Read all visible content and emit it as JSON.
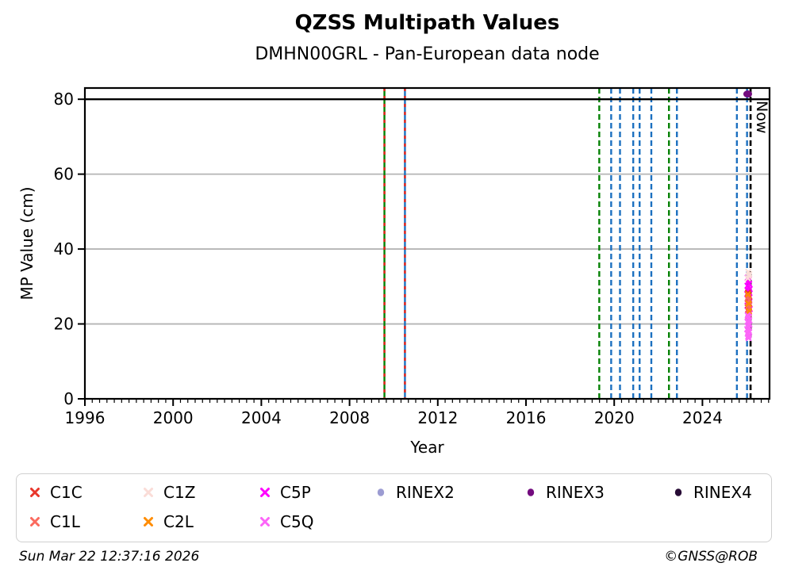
{
  "header": {
    "title": "QZSS Multipath Values",
    "subtitle": "DMHN00GRL - Pan-European data node"
  },
  "footer": {
    "timestamp": "Sun Mar 22 12:37:16 2026",
    "copyright": "©GNSS@ROB"
  },
  "palette": {
    "green": "#048104",
    "blue": "#1c70c0",
    "black": "#000000",
    "red_overlay": "#e32119",
    "grid": "#b5b5b5",
    "spine": "#000000"
  },
  "chart_data": {
    "type": "scatter",
    "title": "QZSS Multipath Values",
    "subtitle": "DMHN00GRL - Pan-European data node",
    "xlabel": "Year",
    "ylabel": "MP Value (cm)",
    "xlim": [
      1996,
      2027.04
    ],
    "ylim": [
      0,
      83
    ],
    "xticks": [
      1996,
      2000,
      2004,
      2008,
      2012,
      2016,
      2020,
      2024
    ],
    "yticks": [
      0,
      20,
      40,
      60,
      80
    ],
    "minor_tick_step_years": 0.3333,
    "grid": "horizontal-only",
    "gridlines_y": [
      20,
      40,
      60
    ],
    "hlines": [
      {
        "y": 80,
        "color": "black",
        "style": "solid"
      }
    ],
    "vlines": [
      {
        "year": 2009.58,
        "color": "green",
        "style": "solid",
        "overlay": "red-dashed"
      },
      {
        "year": 2010.51,
        "color": "blue",
        "style": "solid",
        "overlay": "red-dashed"
      },
      {
        "year": 2019.32,
        "color": "green",
        "style": "dashed"
      },
      {
        "year": 2019.86,
        "color": "blue",
        "style": "dashed"
      },
      {
        "year": 2020.26,
        "color": "blue",
        "style": "dashed"
      },
      {
        "year": 2020.86,
        "color": "blue",
        "style": "dashed"
      },
      {
        "year": 2021.15,
        "color": "blue",
        "style": "dashed"
      },
      {
        "year": 2021.68,
        "color": "blue",
        "style": "dashed"
      },
      {
        "year": 2022.48,
        "color": "green",
        "style": "dashed"
      },
      {
        "year": 2022.84,
        "color": "blue",
        "style": "dashed"
      },
      {
        "year": 2025.56,
        "color": "blue",
        "style": "dashed"
      },
      {
        "year": 2026.02,
        "color": "blue",
        "style": "dashed"
      }
    ],
    "now_line": {
      "year": 2026.18,
      "color": "black",
      "style": "dashed",
      "label": "Now"
    },
    "series": [
      {
        "name": "C5P",
        "marker": "x",
        "color": "#ff00ff",
        "points": [
          [
            2026.05,
            32.3
          ],
          [
            2026.1,
            31.8
          ],
          [
            2026.07,
            31.2
          ],
          [
            2026.12,
            30.7
          ],
          [
            2026.04,
            30.2
          ],
          [
            2026.09,
            29.8
          ],
          [
            2026.14,
            29.3
          ],
          [
            2026.06,
            28.9
          ],
          [
            2026.11,
            28.4
          ],
          [
            2026.03,
            28.0
          ],
          [
            2026.08,
            27.6
          ],
          [
            2026.13,
            27.1
          ],
          [
            2026.05,
            26.7
          ],
          [
            2026.1,
            26.2
          ],
          [
            2026.07,
            25.8
          ],
          [
            2026.12,
            25.3
          ],
          [
            2026.04,
            24.9
          ],
          [
            2026.09,
            24.5
          ],
          [
            2026.14,
            24.0
          ],
          [
            2026.06,
            23.6
          ],
          [
            2026.11,
            23.1
          ],
          [
            2026.08,
            22.7
          ]
        ]
      },
      {
        "name": "C1C",
        "marker": "x",
        "color": "#e8362b",
        "points": [
          [
            2026.06,
            28.3
          ],
          [
            2026.1,
            27.6
          ],
          [
            2026.08,
            26.9
          ],
          [
            2026.12,
            26.2
          ],
          [
            2026.05,
            25.6
          ],
          [
            2026.09,
            25.0
          ],
          [
            2026.11,
            24.4
          ],
          [
            2026.07,
            23.8
          ],
          [
            2026.1,
            23.2
          ],
          [
            2026.08,
            22.6
          ]
        ]
      },
      {
        "name": "C1L",
        "marker": "x",
        "color": "#fb6a5e",
        "points": [
          [
            2026.07,
            27.2
          ],
          [
            2026.11,
            26.4
          ],
          [
            2026.06,
            25.7
          ],
          [
            2026.09,
            24.9
          ],
          [
            2026.12,
            24.2
          ],
          [
            2026.08,
            23.5
          ],
          [
            2026.1,
            22.9
          ]
        ]
      },
      {
        "name": "C2L",
        "marker": "x",
        "color": "#ff8c00",
        "points": [
          [
            2026.06,
            27.9
          ],
          [
            2026.09,
            25.4
          ],
          [
            2026.11,
            23.4
          ],
          [
            2026.07,
            22.2
          ]
        ]
      },
      {
        "name": "C5Q",
        "marker": "x",
        "color": "#fc64f8",
        "points": [
          [
            2026.05,
            22.3
          ],
          [
            2026.1,
            21.9
          ],
          [
            2026.07,
            21.5
          ],
          [
            2026.12,
            21.0
          ],
          [
            2026.04,
            20.6
          ],
          [
            2026.09,
            20.2
          ],
          [
            2026.13,
            19.8
          ],
          [
            2026.06,
            19.4
          ],
          [
            2026.11,
            19.0
          ],
          [
            2026.03,
            18.6
          ],
          [
            2026.08,
            18.2
          ],
          [
            2026.12,
            17.8
          ],
          [
            2026.05,
            17.4
          ],
          [
            2026.1,
            17.0
          ],
          [
            2026.07,
            16.6
          ],
          [
            2026.09,
            16.2
          ]
        ]
      },
      {
        "name": "C1Z",
        "marker": "x",
        "color": "#fadcd7",
        "points": [
          [
            2026.08,
            33.9
          ],
          [
            2026.12,
            33.3
          ],
          [
            2026.1,
            32.8
          ],
          [
            2026.06,
            32.2
          ]
        ]
      },
      {
        "name": "RINEX2",
        "marker": "circle",
        "color": "#9c9cd2",
        "points": []
      },
      {
        "name": "RINEX3",
        "marker": "circle",
        "color": "#730b7e",
        "points": [
          [
            2026.05,
            81.4
          ]
        ]
      },
      {
        "name": "RINEX4",
        "marker": "circle",
        "color": "#270b35",
        "points": []
      }
    ],
    "legend": {
      "position": "bottom",
      "entries": [
        {
          "label": "C1C",
          "marker": "x",
          "color": "#e8362b",
          "col": 0,
          "row": 0
        },
        {
          "label": "C1L",
          "marker": "x",
          "color": "#fb6a5e",
          "col": 0,
          "row": 1
        },
        {
          "label": "C1Z",
          "marker": "x",
          "color": "#fadcd7",
          "col": 1,
          "row": 0
        },
        {
          "label": "C2L",
          "marker": "x",
          "color": "#ff8c00",
          "col": 1,
          "row": 1
        },
        {
          "label": "C5P",
          "marker": "x",
          "color": "#ff00ff",
          "col": 2,
          "row": 0
        },
        {
          "label": "C5Q",
          "marker": "x",
          "color": "#fc64f8",
          "col": 2,
          "row": 1
        },
        {
          "label": "RINEX2",
          "marker": "circle",
          "color": "#9c9cd2",
          "col": 3,
          "row": 0
        },
        {
          "label": "RINEX3",
          "marker": "circle",
          "color": "#730b7e",
          "col": 4,
          "row": 0
        },
        {
          "label": "RINEX4",
          "marker": "circle",
          "color": "#270b35",
          "col": 5,
          "row": 0
        }
      ]
    }
  }
}
